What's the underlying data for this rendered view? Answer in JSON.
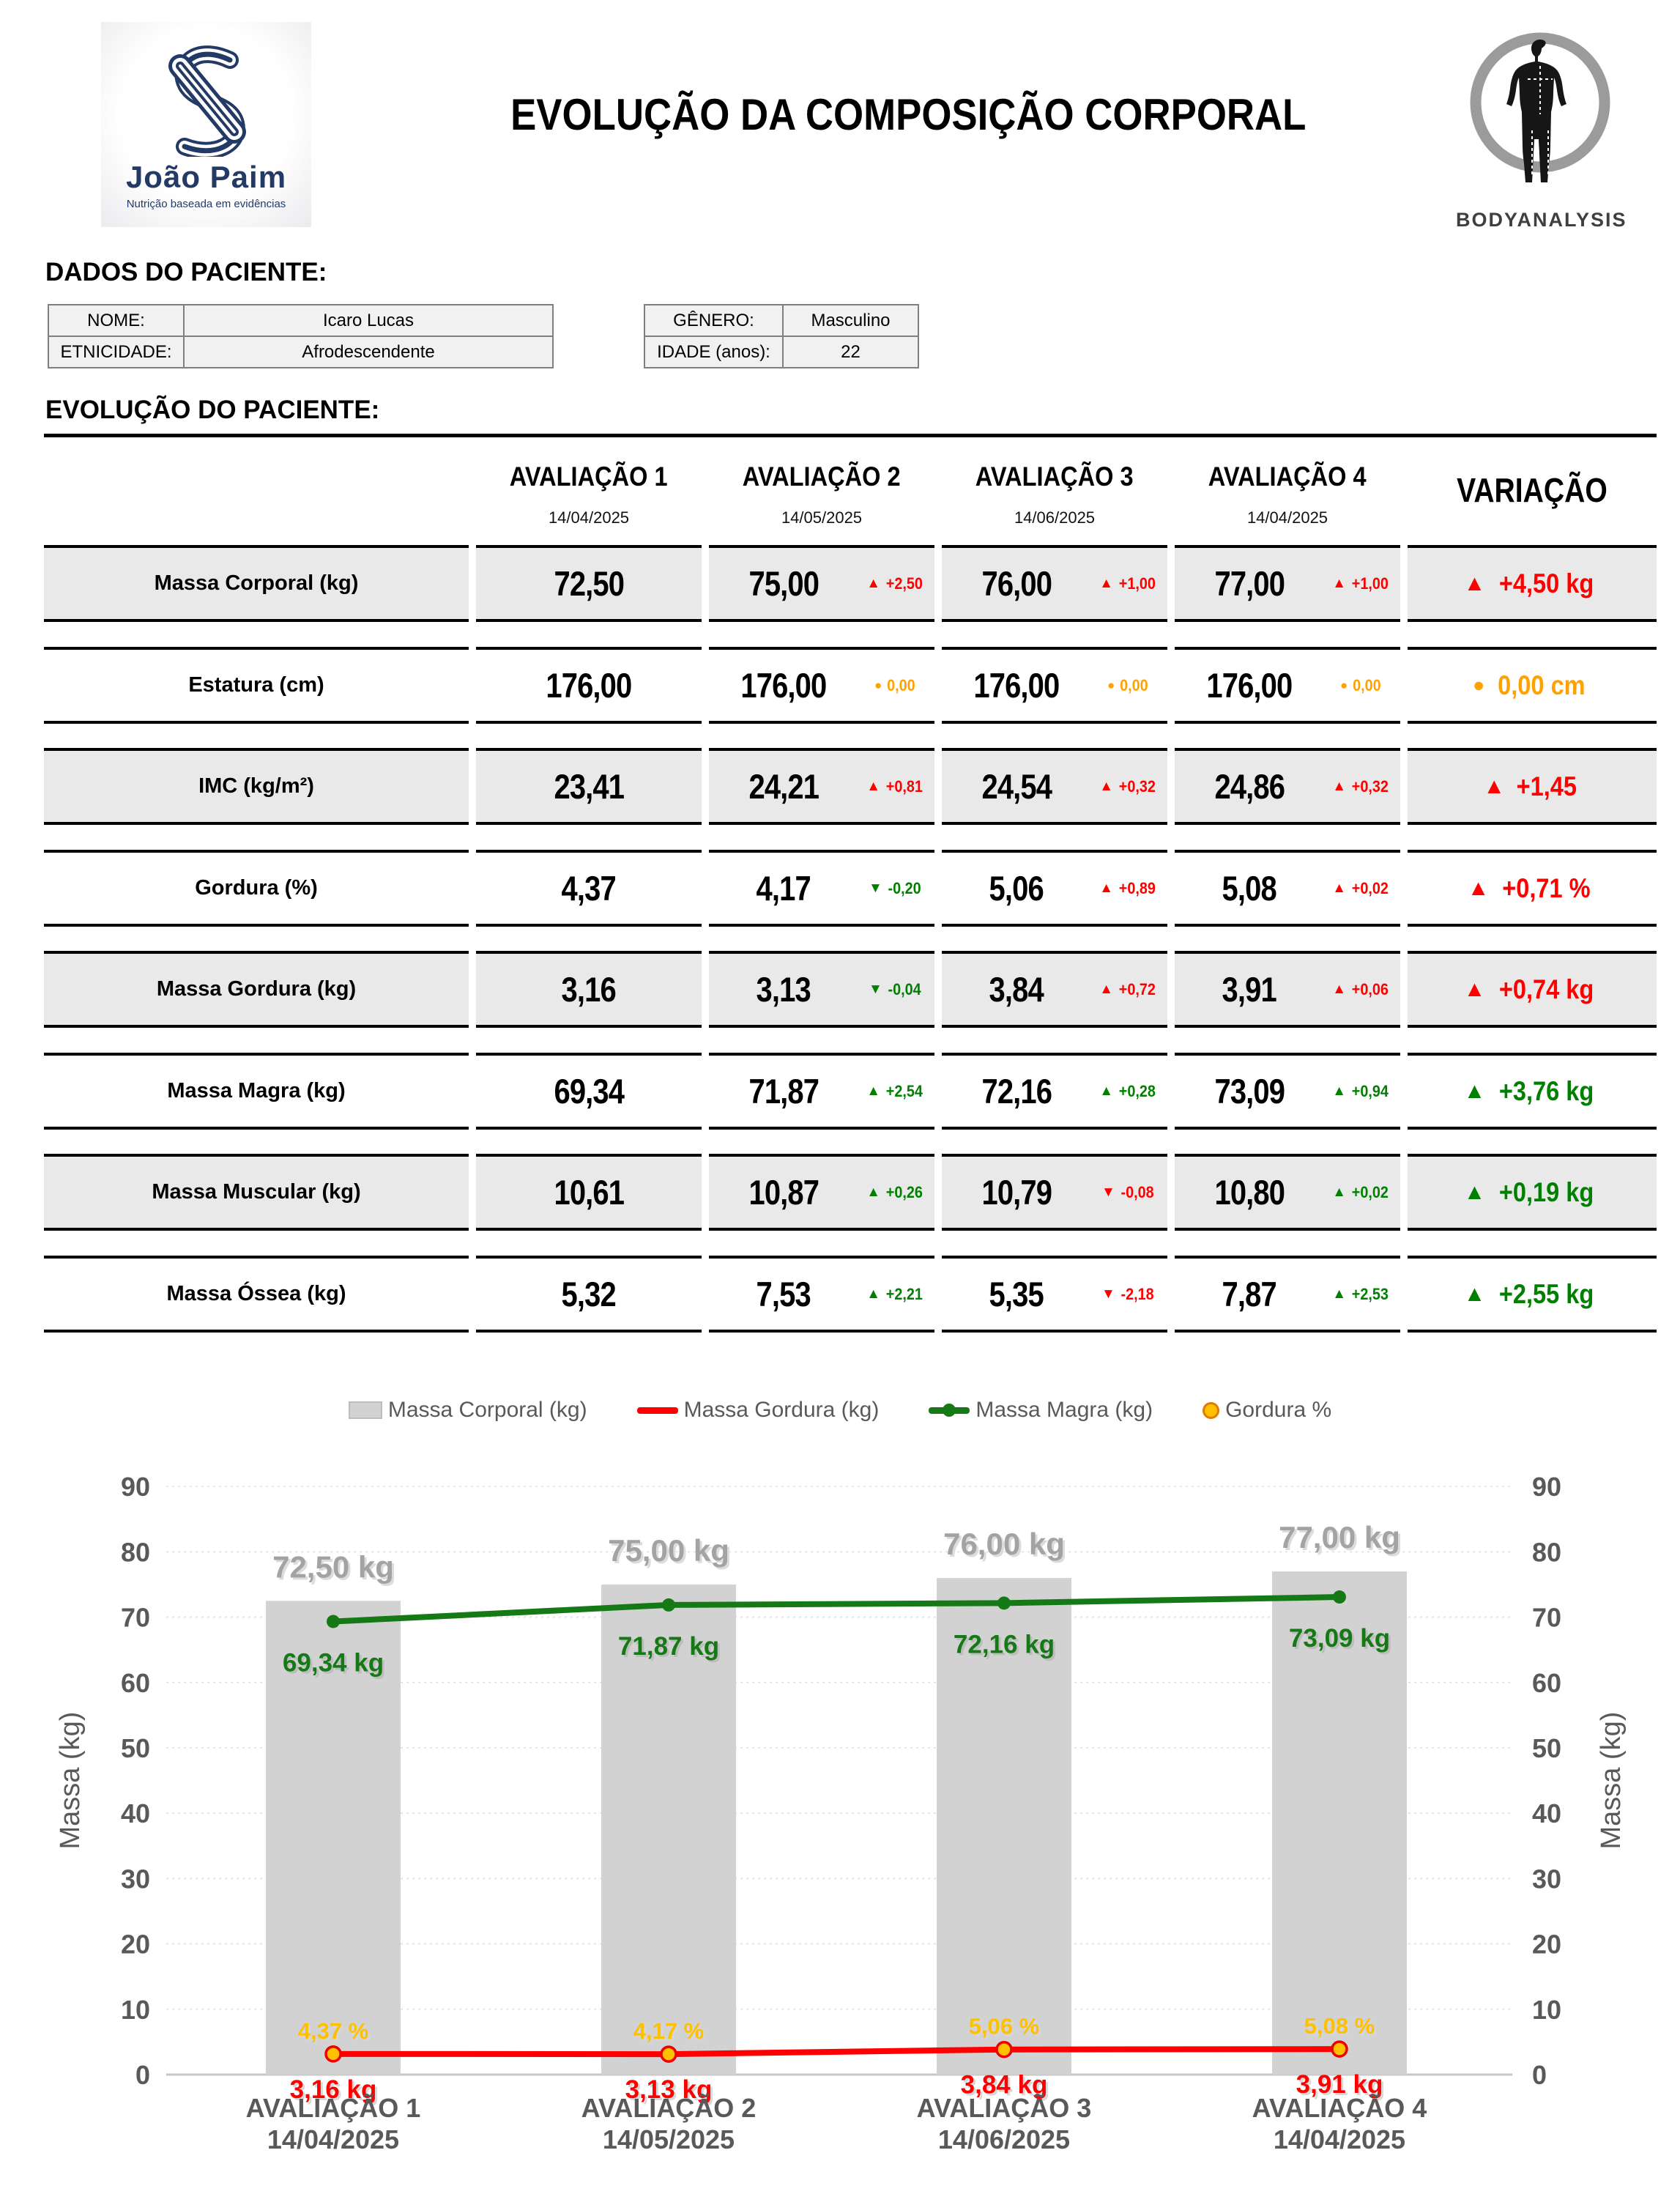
{
  "header": {
    "logo_name": "João Paim",
    "logo_tagline": "Nutrição baseada em evidências",
    "title": "EVOLUÇÃO DA COMPOSIÇÃO CORPORAL",
    "brand": "BODYANALYSIS"
  },
  "patient": {
    "section_title": "DADOS DO PACIENTE:",
    "name_label": "NOME:",
    "name": "Icaro Lucas",
    "ethnicity_label": "ETNICIDADE:",
    "ethnicity": "Afrodescendente",
    "gender_label": "GÊNERO:",
    "gender": "Masculino",
    "age_label": "IDADE (anos):",
    "age": "22"
  },
  "evolution": {
    "section_title": "EVOLUÇÃO DO PACIENTE:",
    "variation_header": "VARIAÇÃO",
    "assessments": [
      {
        "name": "AVALIAÇÃO 1",
        "date": "14/04/2025"
      },
      {
        "name": "AVALIAÇÃO 2",
        "date": "14/05/2025"
      },
      {
        "name": "AVALIAÇÃO 3",
        "date": "14/06/2025"
      },
      {
        "name": "AVALIAÇÃO 4",
        "date": "14/04/2025"
      }
    ],
    "rows": [
      {
        "label": "Massa Corporal (kg)",
        "shaded": true,
        "cells": [
          {
            "v": "72,50"
          },
          {
            "v": "75,00",
            "d": "+2,50",
            "dir": "up",
            "c": "red"
          },
          {
            "v": "76,00",
            "d": "+1,00",
            "dir": "up",
            "c": "red"
          },
          {
            "v": "77,00",
            "d": "+1,00",
            "dir": "up",
            "c": "red"
          }
        ],
        "variation": {
          "dir": "up",
          "text": "+4,50 kg",
          "c": "red"
        }
      },
      {
        "label": "Estatura (cm)",
        "shaded": false,
        "cells": [
          {
            "v": "176,00"
          },
          {
            "v": "176,00",
            "d": "0,00",
            "dir": "flat",
            "c": "orange"
          },
          {
            "v": "176,00",
            "d": "0,00",
            "dir": "flat",
            "c": "orange"
          },
          {
            "v": "176,00",
            "d": "0,00",
            "dir": "flat",
            "c": "orange"
          }
        ],
        "variation": {
          "dir": "flat",
          "text": "0,00 cm",
          "c": "orange"
        }
      },
      {
        "label": "IMC (kg/m²)",
        "shaded": true,
        "cells": [
          {
            "v": "23,41"
          },
          {
            "v": "24,21",
            "d": "+0,81",
            "dir": "up",
            "c": "red"
          },
          {
            "v": "24,54",
            "d": "+0,32",
            "dir": "up",
            "c": "red"
          },
          {
            "v": "24,86",
            "d": "+0,32",
            "dir": "up",
            "c": "red"
          }
        ],
        "variation": {
          "dir": "up",
          "text": "+1,45",
          "c": "red"
        }
      },
      {
        "label": "Gordura (%)",
        "shaded": false,
        "cells": [
          {
            "v": "4,37"
          },
          {
            "v": "4,17",
            "d": "-0,20",
            "dir": "down",
            "c": "green"
          },
          {
            "v": "5,06",
            "d": "+0,89",
            "dir": "up",
            "c": "red"
          },
          {
            "v": "5,08",
            "d": "+0,02",
            "dir": "up",
            "c": "red"
          }
        ],
        "variation": {
          "dir": "up",
          "text": "+0,71 %",
          "c": "red"
        }
      },
      {
        "label": "Massa Gordura (kg)",
        "shaded": true,
        "cells": [
          {
            "v": "3,16"
          },
          {
            "v": "3,13",
            "d": "-0,04",
            "dir": "down",
            "c": "green"
          },
          {
            "v": "3,84",
            "d": "+0,72",
            "dir": "up",
            "c": "red"
          },
          {
            "v": "3,91",
            "d": "+0,06",
            "dir": "up",
            "c": "red"
          }
        ],
        "variation": {
          "dir": "up",
          "text": "+0,74 kg",
          "c": "red"
        }
      },
      {
        "label": "Massa Magra (kg)",
        "shaded": false,
        "cells": [
          {
            "v": "69,34"
          },
          {
            "v": "71,87",
            "d": "+2,54",
            "dir": "up",
            "c": "green"
          },
          {
            "v": "72,16",
            "d": "+0,28",
            "dir": "up",
            "c": "green"
          },
          {
            "v": "73,09",
            "d": "+0,94",
            "dir": "up",
            "c": "green"
          }
        ],
        "variation": {
          "dir": "up",
          "text": "+3,76 kg",
          "c": "green"
        }
      },
      {
        "label": "Massa Muscular (kg)",
        "shaded": true,
        "cells": [
          {
            "v": "10,61"
          },
          {
            "v": "10,87",
            "d": "+0,26",
            "dir": "up",
            "c": "green"
          },
          {
            "v": "10,79",
            "d": "-0,08",
            "dir": "down",
            "c": "red"
          },
          {
            "v": "10,80",
            "d": "+0,02",
            "dir": "up",
            "c": "green"
          }
        ],
        "variation": {
          "dir": "up",
          "text": "+0,19 kg",
          "c": "green"
        }
      },
      {
        "label": "Massa Óssea (kg)",
        "shaded": false,
        "cells": [
          {
            "v": "5,32"
          },
          {
            "v": "7,53",
            "d": "+2,21",
            "dir": "up",
            "c": "green"
          },
          {
            "v": "5,35",
            "d": "-2,18",
            "dir": "down",
            "c": "red"
          },
          {
            "v": "7,87",
            "d": "+2,53",
            "dir": "up",
            "c": "green"
          }
        ],
        "variation": {
          "dir": "up",
          "text": "+2,55 kg",
          "c": "green"
        }
      }
    ]
  },
  "chart_data": {
    "type": "combo",
    "categories": [
      "AVALIAÇÃO 1",
      "AVALIAÇÃO 2",
      "AVALIAÇÃO 3",
      "AVALIAÇÃO 4"
    ],
    "category_dates": [
      "14/04/2025",
      "14/05/2025",
      "14/06/2025",
      "14/04/2025"
    ],
    "series": [
      {
        "name": "Massa Corporal (kg)",
        "type": "bar",
        "color": "#d2d2d2",
        "values": [
          72.5,
          75.0,
          76.0,
          77.0
        ],
        "labels": [
          "72,50 kg",
          "75,00 kg",
          "76,00 kg",
          "77,00 kg"
        ]
      },
      {
        "name": "Massa Gordura (kg)",
        "type": "line",
        "color": "#ff0000",
        "values": [
          3.16,
          3.13,
          3.84,
          3.91
        ],
        "labels": [
          "3,16 kg",
          "3,13 kg",
          "3,84 kg",
          "3,91 kg"
        ]
      },
      {
        "name": "Massa Magra (kg)",
        "type": "line",
        "color": "#157a15",
        "values": [
          69.34,
          71.87,
          72.16,
          73.09
        ],
        "labels": [
          "69,34 kg",
          "71,87 kg",
          "72,16 kg",
          "73,09 kg"
        ]
      },
      {
        "name": "Gordura %",
        "type": "point",
        "color": "#ffc000",
        "values": [
          4.37,
          4.17,
          5.06,
          5.08
        ],
        "labels": [
          "4,37 %",
          "4,17 %",
          "5,06 %",
          "5,08 %"
        ]
      }
    ],
    "ylabel": "Massa (kg)",
    "ylim": [
      0,
      90
    ],
    "yticks": [
      0,
      10,
      20,
      30,
      40,
      50,
      60,
      70,
      80,
      90
    ],
    "grid": true,
    "legend_position": "top"
  }
}
